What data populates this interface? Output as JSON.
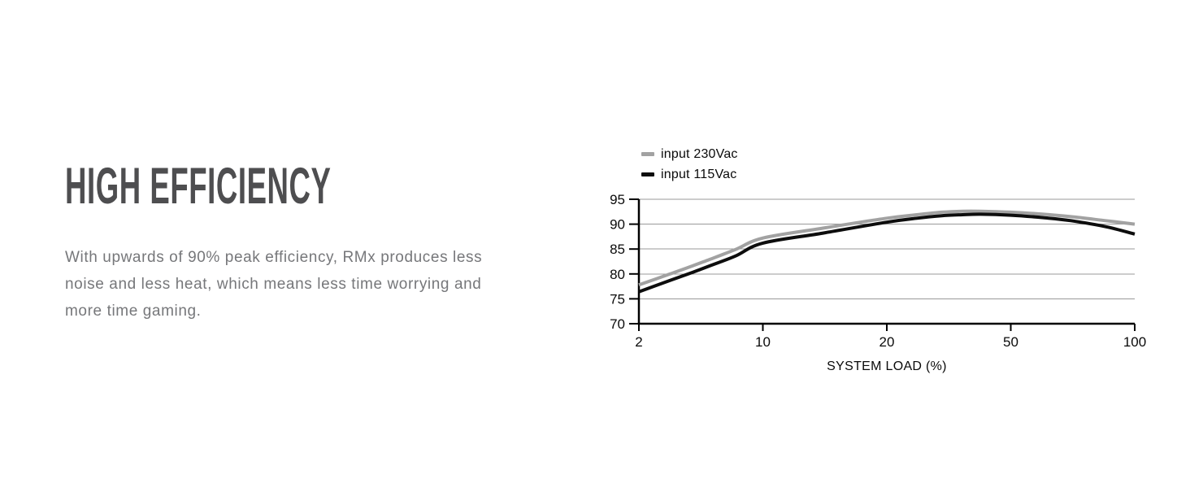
{
  "page": {
    "background": "#ffffff"
  },
  "section": {
    "title": "HIGH EFFICIENCY",
    "body_lines": [
      "With upwards of 90% peak efficiency, RMx produces less",
      "noise and less heat, which means less time worrying and",
      "more time gaming."
    ]
  },
  "colors": {
    "heading": "#4e4e50",
    "body_text": "#76777a",
    "chart_text": "#0a0a0a",
    "gridline": "#999999",
    "axis": "#000000",
    "series_230vac": "#a2a2a2",
    "series_115vac": "#0d0d0d"
  },
  "chart_data": {
    "type": "line",
    "title": "",
    "xlabel": "SYSTEM LOAD (%)",
    "ylabel": "",
    "x_scale": "log-segmented-equal-tick-spacing",
    "x_ticks": [
      2,
      10,
      20,
      50,
      100
    ],
    "y_ticks": [
      70,
      75,
      80,
      85,
      90,
      95
    ],
    "ylim": [
      70,
      95
    ],
    "xlim": [
      2,
      100
    ],
    "grid": "horizontal",
    "legend_position": "top-left",
    "series": [
      {
        "name": "input 230Vac",
        "color": "#a2a2a2",
        "x": [
          2,
          3,
          4,
          5,
          7,
          10,
          14,
          20,
          25,
          30,
          35,
          40,
          50,
          60,
          70,
          85,
          100
        ],
        "y": [
          77.8,
          80.0,
          81.6,
          82.9,
          84.9,
          87.2,
          89.2,
          91.2,
          91.9,
          92.4,
          92.6,
          92.6,
          92.4,
          92.0,
          91.5,
          90.7,
          90.0
        ]
      },
      {
        "name": "input 115Vac",
        "color": "#0d0d0d",
        "x": [
          2,
          3,
          4,
          5,
          7,
          10,
          14,
          20,
          25,
          30,
          35,
          40,
          50,
          60,
          70,
          85,
          100
        ],
        "y": [
          76.4,
          78.7,
          80.3,
          81.6,
          83.6,
          86.2,
          88.2,
          90.4,
          91.2,
          91.7,
          91.9,
          92.0,
          91.8,
          91.3,
          90.7,
          89.5,
          88.0
        ]
      }
    ]
  }
}
